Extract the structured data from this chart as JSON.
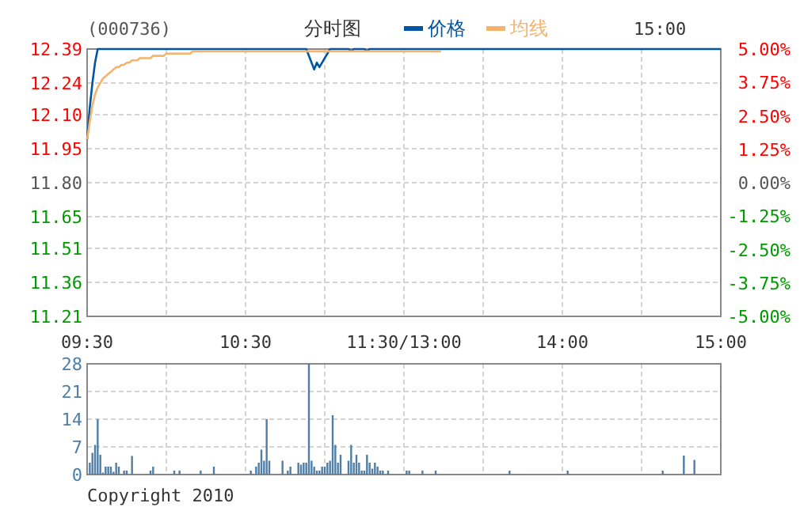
{
  "chart_data": [
    {
      "type": "line",
      "title": "分时图",
      "subtitle": "(000736)",
      "annotations": [
        "15:00"
      ],
      "legend": "top",
      "grid": true,
      "categories": [
        "09:30",
        null,
        null,
        null,
        null,
        null,
        null,
        null,
        null,
        null,
        null,
        null,
        null,
        null,
        null,
        null,
        null,
        null,
        null,
        null,
        null,
        null,
        null,
        null,
        null,
        null,
        null,
        null,
        null,
        null,
        null,
        null,
        null,
        null,
        null,
        null,
        null,
        null,
        null,
        null,
        null,
        null,
        null,
        null,
        null,
        null,
        null,
        null,
        null,
        null,
        null,
        null,
        null,
        null,
        null,
        null,
        null,
        null,
        null,
        null,
        "10:30",
        null,
        null,
        null,
        null,
        null,
        null,
        null,
        null,
        null,
        null,
        null,
        null,
        null,
        null,
        null,
        null,
        null,
        null,
        null,
        null,
        null,
        null,
        null,
        null,
        null,
        null,
        null,
        null,
        null,
        null,
        null,
        null,
        null,
        null,
        null,
        null,
        null,
        null,
        null,
        null,
        null,
        null,
        null,
        null,
        null,
        null,
        null,
        null,
        null,
        null,
        null,
        null,
        null,
        null,
        null,
        null,
        null,
        null,
        null,
        "11:30/13:00",
        null,
        null,
        null,
        null,
        null,
        null,
        null,
        null,
        null,
        null,
        null,
        null,
        null,
        null,
        null,
        null,
        null,
        null,
        null,
        null,
        null,
        null,
        null,
        null,
        null,
        null,
        null,
        null,
        null,
        null,
        null,
        null,
        null,
        null,
        null,
        null,
        null,
        null,
        null,
        null,
        null,
        null,
        null,
        null,
        null,
        null,
        null,
        null,
        null,
        null,
        null,
        null,
        null,
        null,
        null,
        null,
        null,
        null,
        null,
        "14:00",
        null,
        null,
        null,
        null,
        null,
        null,
        null,
        null,
        null,
        null,
        null,
        null,
        null,
        null,
        null,
        null,
        null,
        null,
        null,
        null,
        null,
        null,
        null,
        null,
        null,
        null,
        null,
        null,
        null,
        null,
        null,
        null,
        null,
        null,
        null,
        null,
        null,
        null,
        null,
        null,
        null,
        null,
        null,
        null,
        null,
        null,
        null,
        null,
        null,
        null,
        null,
        null,
        null,
        null,
        null,
        null,
        null,
        null,
        null,
        "15:00"
      ],
      "ylim": [
        11.21,
        12.39
      ],
      "yticks": [
        11.21,
        11.36,
        11.51,
        11.65,
        {
          "value": 11.8,
          "label": "11.80"
        },
        11.95,
        {
          "value": 12.1,
          "label": "12.10"
        },
        12.24,
        12.39
      ],
      "y2lim": [
        -5,
        5
      ],
      "y2ticks": [
        {
          "value": -5,
          "label": "-5.00%"
        },
        {
          "value": -3.75,
          "label": "-3.75%"
        },
        {
          "value": -2.5,
          "label": "-2.50%"
        },
        {
          "value": -1.25,
          "label": "-1.25%"
        },
        {
          "value": 0,
          "label": "0.00%"
        },
        {
          "value": 1.25,
          "label": "1.25%"
        },
        {
          "value": 2.5,
          "label": "2.50%"
        },
        {
          "value": 3.75,
          "label": "3.75%"
        },
        {
          "value": 5,
          "label": "5.00%"
        }
      ],
      "series": [
        {
          "name": "价格",
          "color": "#0055a5",
          "values": [
            11.99,
            12.13,
            12.24,
            12.33,
            12.39,
            12.39,
            12.39,
            12.39,
            12.39,
            12.39,
            12.39,
            12.39,
            12.39,
            12.39,
            12.39,
            12.39,
            12.39,
            12.39,
            12.39,
            12.39,
            12.39,
            12.39,
            12.39,
            12.39,
            12.39,
            12.39,
            12.39,
            12.39,
            12.39,
            12.39,
            12.39,
            12.39,
            12.39,
            12.39,
            12.39,
            12.39,
            12.39,
            12.39,
            12.39,
            12.39,
            12.39,
            12.39,
            12.39,
            12.39,
            12.39,
            12.39,
            12.39,
            12.39,
            12.39,
            12.39,
            12.39,
            12.39,
            12.39,
            12.39,
            12.39,
            12.39,
            12.39,
            12.39,
            12.39,
            12.39,
            12.39,
            12.39,
            12.39,
            12.39,
            12.39,
            12.39,
            12.39,
            12.39,
            12.39,
            12.39,
            12.39,
            12.39,
            12.39,
            12.39,
            12.39,
            12.39,
            12.39,
            12.39,
            12.39,
            12.39,
            12.39,
            12.39,
            12.39,
            12.39,
            12.36,
            12.33,
            12.3,
            12.33,
            12.31,
            12.33,
            12.35,
            12.37,
            12.39,
            12.39,
            12.39,
            12.39,
            12.39,
            12.39,
            12.39,
            12.39,
            12.38,
            12.39,
            12.39,
            12.39,
            12.39,
            12.39,
            12.38,
            12.39,
            12.39,
            12.39,
            12.39,
            12.39,
            12.39,
            12.39,
            12.39,
            12.39,
            12.39,
            12.39,
            12.39,
            12.39,
            12.39,
            12.39,
            12.39,
            12.39,
            12.39,
            12.39,
            12.39,
            12.39,
            12.39,
            12.39,
            12.39,
            12.39,
            12.39,
            12.39,
            12.39,
            12.39,
            12.39,
            12.39,
            12.39,
            12.39,
            12.39,
            12.39,
            12.39,
            12.39,
            12.39,
            12.39,
            12.39,
            12.39,
            12.39,
            12.39,
            12.39,
            12.39,
            12.39,
            12.39,
            12.39,
            12.39,
            12.39,
            12.39,
            12.39,
            12.39,
            12.39,
            12.39,
            12.39,
            12.39,
            12.39,
            12.39,
            12.39,
            12.39,
            12.39,
            12.39,
            12.39,
            12.39,
            12.39,
            12.39,
            12.39,
            12.39,
            12.39,
            12.39,
            12.39,
            12.39,
            12.39,
            12.39,
            12.39,
            12.39,
            12.39,
            12.39,
            12.39,
            12.39,
            12.39,
            12.39,
            12.39,
            12.39,
            12.39,
            12.39,
            12.39,
            12.39,
            12.39,
            12.39,
            12.39,
            12.39,
            12.39,
            12.39,
            12.39,
            12.39,
            12.39,
            12.39,
            12.39,
            12.39,
            12.39,
            12.39,
            12.39,
            12.39,
            12.39,
            12.39,
            12.39,
            12.39,
            12.39,
            12.39,
            12.39,
            12.39,
            12.39,
            12.39,
            12.39,
            12.39,
            12.39,
            12.39,
            12.39,
            12.39,
            12.39,
            12.39,
            12.39,
            12.39,
            12.39,
            12.39,
            12.39,
            12.39,
            12.39,
            12.39,
            12.39,
            12.39,
            12.39
          ]
        },
        {
          "name": "均线",
          "color": "#f5b36b",
          "values": [
            11.99,
            12.07,
            12.14,
            12.19,
            12.22,
            12.24,
            12.26,
            12.27,
            12.28,
            12.29,
            12.3,
            12.31,
            12.31,
            12.32,
            12.32,
            12.33,
            12.33,
            12.34,
            12.34,
            12.34,
            12.35,
            12.35,
            12.35,
            12.35,
            12.35,
            12.36,
            12.36,
            12.36,
            12.36,
            12.36,
            12.37,
            12.37,
            12.37,
            12.37,
            12.37,
            12.37,
            12.37,
            12.37,
            12.37,
            12.37,
            12.38,
            12.38,
            12.38,
            12.38,
            12.38,
            12.38,
            12.38,
            12.38,
            12.38,
            12.38,
            12.38,
            12.38,
            12.38,
            12.38,
            12.38,
            12.38,
            12.38,
            12.38,
            12.38,
            12.38,
            12.38,
            12.38,
            12.38,
            12.38,
            12.38,
            12.38,
            12.38,
            12.38,
            12.38,
            12.38,
            12.38,
            12.38,
            12.38,
            12.38,
            12.38,
            12.38,
            12.38,
            12.38,
            12.38,
            12.38,
            12.38,
            12.38,
            12.38,
            12.38,
            12.38,
            12.38,
            12.38,
            12.38,
            12.38,
            12.38,
            12.38,
            12.38,
            12.38,
            12.38,
            12.38,
            12.38,
            12.38,
            12.38,
            12.38,
            12.38,
            12.38,
            12.38,
            12.38,
            12.38,
            12.38,
            12.38,
            12.38,
            12.38,
            12.38,
            12.38,
            12.38,
            12.38,
            12.38,
            12.38,
            12.38,
            12.38,
            12.38,
            12.38,
            12.38,
            12.38,
            12.38,
            12.38,
            12.38,
            12.38,
            12.38,
            12.38,
            12.38,
            12.38,
            12.38,
            12.38,
            12.38,
            12.38,
            12.38,
            12.38,
            12.38,
            null,
            null,
            null,
            null,
            null,
            null,
            null,
            null,
            null,
            null,
            null,
            null,
            null,
            null,
            null,
            null,
            null,
            null,
            null,
            null,
            null,
            null,
            null,
            null,
            null,
            null,
            null,
            null,
            null,
            null,
            null,
            null,
            null,
            null,
            null,
            null,
            null,
            null,
            null,
            null,
            null,
            null,
            null,
            null,
            null,
            null,
            null,
            null,
            null,
            null,
            null,
            null,
            null,
            null,
            null,
            null,
            null,
            null,
            null,
            null,
            null,
            null,
            null,
            null,
            null,
            null,
            null,
            null,
            null,
            null,
            null,
            null,
            null,
            null,
            null,
            null,
            null,
            null,
            null,
            null,
            null,
            null,
            null,
            null,
            null,
            null,
            null,
            null,
            null,
            null,
            null,
            null,
            null,
            null,
            null,
            null,
            null,
            null,
            null,
            null,
            null,
            null,
            null,
            null,
            null,
            null
          ]
        }
      ]
    },
    {
      "type": "bar",
      "annotations": [
        "Copyright 2010"
      ],
      "grid": true,
      "tick_labels": "y",
      "categories": [
        null,
        null,
        null,
        null,
        null,
        null,
        null,
        null,
        null,
        null,
        null,
        null,
        null,
        null,
        null,
        null,
        null,
        null,
        null,
        null,
        null,
        null,
        null,
        null,
        null,
        null,
        null,
        null,
        null,
        null,
        null,
        null,
        null,
        null,
        null,
        null,
        null,
        null,
        null,
        null,
        null,
        null,
        null,
        null,
        null,
        null,
        null,
        null,
        null,
        null,
        null,
        null,
        null,
        null,
        null,
        null,
        null,
        null,
        null,
        null,
        null,
        null,
        null,
        null,
        null,
        null,
        null,
        null,
        null,
        null,
        null,
        null,
        null,
        null,
        null,
        null,
        null,
        null,
        null,
        null,
        null,
        null,
        null,
        null,
        null,
        null,
        null,
        null,
        null,
        null,
        null,
        null,
        null,
        null,
        null,
        null,
        null,
        null,
        null,
        null,
        null,
        null,
        null,
        null,
        null,
        null,
        null,
        null,
        null,
        null,
        null,
        null,
        null,
        null,
        null,
        null,
        null,
        null,
        null,
        null,
        null,
        null,
        null,
        null,
        null,
        null,
        null,
        null,
        null,
        null,
        null,
        null,
        null,
        null,
        null,
        null,
        null,
        null,
        null,
        null,
        null,
        null,
        null,
        null,
        null,
        null,
        null,
        null,
        null,
        null,
        null,
        null,
        null,
        null,
        null,
        null,
        null,
        null,
        null,
        null,
        null,
        null,
        null,
        null,
        null,
        null,
        null,
        null,
        null,
        null,
        null,
        null,
        null,
        null,
        null,
        null,
        null,
        null,
        null,
        null,
        null,
        null,
        null,
        null,
        null,
        null,
        null,
        null,
        null,
        null,
        null,
        null,
        null,
        null,
        null,
        null,
        null,
        null,
        null,
        null,
        null,
        null,
        null,
        null,
        null,
        null,
        null,
        null,
        null,
        null,
        null,
        null,
        null,
        null,
        null,
        null,
        null,
        null,
        null,
        null,
        null,
        null,
        null,
        null,
        null,
        null,
        null,
        null,
        null,
        null,
        null,
        null,
        null,
        null,
        null,
        null,
        null,
        null,
        null,
        null,
        null
      ],
      "ylim": [
        0,
        28
      ],
      "yticks": [
        0,
        7,
        14,
        21,
        28
      ],
      "series": [
        {
          "color": "#4f7fa6",
          "values": [
            null,
            3,
            5.5,
            7.5,
            14,
            5,
            0.5,
            2,
            2,
            2,
            0.7,
            3,
            2,
            null,
            1,
            1,
            null,
            4.7,
            null,
            null,
            null,
            null,
            null,
            null,
            1,
            2,
            null,
            null,
            null,
            null,
            null,
            null,
            null,
            1,
            null,
            1,
            null,
            null,
            null,
            null,
            null,
            null,
            null,
            1,
            null,
            null,
            null,
            null,
            2,
            null,
            null,
            null,
            null,
            null,
            null,
            null,
            null,
            null,
            null,
            null,
            null,
            null,
            1,
            null,
            2,
            3,
            6.3,
            3.5,
            14,
            3.5,
            null,
            null,
            null,
            null,
            3.5,
            null,
            1,
            2,
            null,
            null,
            3,
            2.5,
            3,
            3,
            28,
            3.5,
            2,
            1,
            1,
            2,
            2,
            3,
            3.5,
            15,
            7.5,
            3,
            5,
            null,
            null,
            3.5,
            7.5,
            3,
            5,
            3,
            1,
            1,
            5,
            3,
            1.5,
            3,
            2,
            1,
            1,
            null,
            1,
            null,
            null,
            null,
            null,
            null,
            null,
            1,
            1,
            null,
            null,
            null,
            null,
            1,
            null,
            null,
            null,
            null,
            1,
            null,
            null,
            null,
            null,
            null,
            null,
            null,
            null,
            null,
            null,
            null,
            null,
            null,
            null,
            null,
            null,
            null,
            null,
            null,
            null,
            null,
            null,
            null,
            null,
            null,
            null,
            null,
            1,
            null,
            null,
            null,
            null,
            null,
            null,
            null,
            null,
            null,
            null,
            null,
            null,
            null,
            null,
            null,
            null,
            null,
            null,
            null,
            null,
            null,
            1,
            null,
            null,
            null,
            null,
            null,
            null,
            null,
            null,
            null,
            null,
            null,
            null,
            null,
            null,
            null,
            null,
            null,
            null,
            null,
            null,
            null,
            null,
            null,
            null,
            null,
            null,
            null,
            null,
            null,
            null,
            null,
            null,
            null,
            null,
            null,
            1,
            null,
            null,
            null,
            null,
            null,
            null,
            null,
            4.8,
            null,
            null,
            null,
            3.7,
            null,
            null,
            null,
            null,
            null,
            null,
            null,
            null,
            null,
            null
          ]
        }
      ]
    }
  ]
}
